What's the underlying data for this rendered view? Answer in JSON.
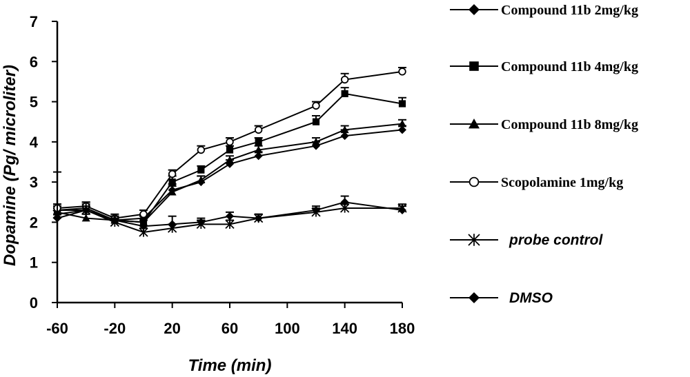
{
  "chart_data": {
    "type": "line",
    "xlabel": "Time (min)",
    "ylabel": "Dopamine (Pg/ microliter)",
    "xlim": [
      -60,
      180
    ],
    "ylim": [
      0,
      7
    ],
    "x_ticks": [
      -60,
      -20,
      20,
      60,
      100,
      140,
      180
    ],
    "y_ticks": [
      0,
      1,
      2,
      3,
      4,
      5,
      6,
      7
    ],
    "x_tick_labels": [
      "-60",
      "-20",
      "20",
      "60",
      "100",
      "140",
      "180"
    ],
    "y_tick_labels": [
      "0",
      "1",
      "2",
      "3",
      "4",
      "5",
      "6",
      "7"
    ],
    "legend_position": "right",
    "series": [
      {
        "name": "Compound 11b 2mg/kg",
        "marker": "diamond",
        "legend_font": "serif",
        "x": [
          -60,
          -40,
          -20,
          0,
          20,
          40,
          60,
          80,
          120,
          140,
          180
        ],
        "y": [
          2.3,
          2.3,
          2.05,
          2.1,
          2.8,
          3.0,
          3.45,
          3.65,
          3.9,
          4.15,
          4.3
        ],
        "err": [
          0.15,
          0.1,
          0.1,
          0.1,
          0.15,
          0.15,
          0.1,
          0.1,
          0.1,
          0.15,
          0.1
        ]
      },
      {
        "name": "Compound 11b 4mg/kg",
        "marker": "square",
        "legend_font": "serif",
        "x": [
          -60,
          -40,
          -20,
          0,
          20,
          40,
          60,
          80,
          120,
          140,
          180
        ],
        "y": [
          2.3,
          2.35,
          2.05,
          2.0,
          3.0,
          3.3,
          3.8,
          4.0,
          4.5,
          5.2,
          4.95
        ],
        "err": [
          0.1,
          0.1,
          0.1,
          0.15,
          0.15,
          0.1,
          0.1,
          0.1,
          0.15,
          0.15,
          0.15
        ]
      },
      {
        "name": "Compound 11b 8mg/kg",
        "marker": "triangle",
        "legend_font": "serif",
        "x": [
          -60,
          -40,
          -20,
          0,
          20,
          40,
          60,
          80,
          120,
          140,
          180
        ],
        "y": [
          2.25,
          2.1,
          2.05,
          2.0,
          2.75,
          3.05,
          3.55,
          3.8,
          4.0,
          4.3,
          4.45
        ],
        "err": [
          0.1,
          0.1,
          0.1,
          0.15,
          0.15,
          0.1,
          0.1,
          0.1,
          0.1,
          0.1,
          0.1
        ]
      },
      {
        "name": "Scopolamine 1mg/kg",
        "marker": "circle-open",
        "legend_font": "serif",
        "x": [
          -60,
          -40,
          -20,
          0,
          20,
          40,
          60,
          80,
          120,
          140,
          180
        ],
        "y": [
          2.35,
          2.4,
          2.1,
          2.2,
          3.2,
          3.8,
          4.0,
          4.3,
          4.9,
          5.55,
          5.75
        ],
        "err": [
          0.1,
          0.1,
          0.1,
          0.1,
          0.1,
          0.1,
          0.1,
          0.1,
          0.1,
          0.15,
          0.1
        ]
      },
      {
        "name": "probe control",
        "marker": "asterisk",
        "legend_font": "sans",
        "x": [
          -60,
          -40,
          -20,
          0,
          20,
          40,
          60,
          80,
          120,
          140,
          180
        ],
        "y": [
          2.2,
          2.3,
          2.0,
          1.75,
          1.85,
          1.95,
          1.95,
          2.1,
          2.25,
          2.35,
          2.35
        ],
        "err": [
          1.05,
          0.2,
          0.1,
          0.1,
          0.1,
          0.1,
          0.1,
          0.1,
          0.1,
          0.1,
          0.1
        ]
      },
      {
        "name": "DMSO",
        "marker": "diamond",
        "legend_font": "sans",
        "x": [
          -60,
          -40,
          -20,
          0,
          20,
          40,
          60,
          80,
          120,
          140,
          180
        ],
        "y": [
          2.1,
          2.3,
          2.05,
          1.9,
          1.95,
          2.0,
          2.15,
          2.1,
          2.3,
          2.5,
          2.3
        ],
        "err": [
          0.1,
          0.1,
          0.1,
          0.15,
          0.2,
          0.1,
          0.1,
          0.1,
          0.1,
          0.15,
          0.1
        ]
      }
    ]
  }
}
